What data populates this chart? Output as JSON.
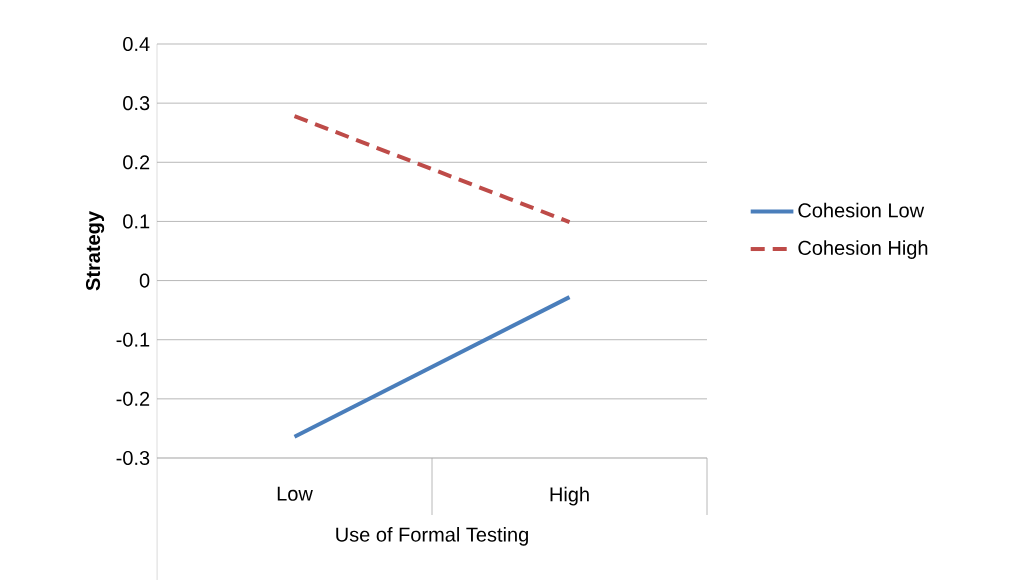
{
  "chart_data": {
    "type": "line",
    "xlabel": "Use of Formal Testing",
    "ylabel": "Strategy",
    "categories": [
      "Low",
      "High"
    ],
    "series": [
      {
        "name": "Cohesion Low",
        "color": "#4a7ebb",
        "values": [
          -0.264,
          -0.028
        ],
        "line_style": "solid"
      },
      {
        "name": "Cohesion High",
        "color": "#be4b48",
        "values": [
          0.278,
          0.099
        ],
        "line_style": "dashed"
      }
    ],
    "ylim": [
      -0.3,
      0.4
    ],
    "yticks": [
      -0.3,
      -0.2,
      -0.1,
      0,
      0.1,
      0.2,
      0.3,
      0.4
    ],
    "grid": "y",
    "legend": "right",
    "marker": "none"
  }
}
